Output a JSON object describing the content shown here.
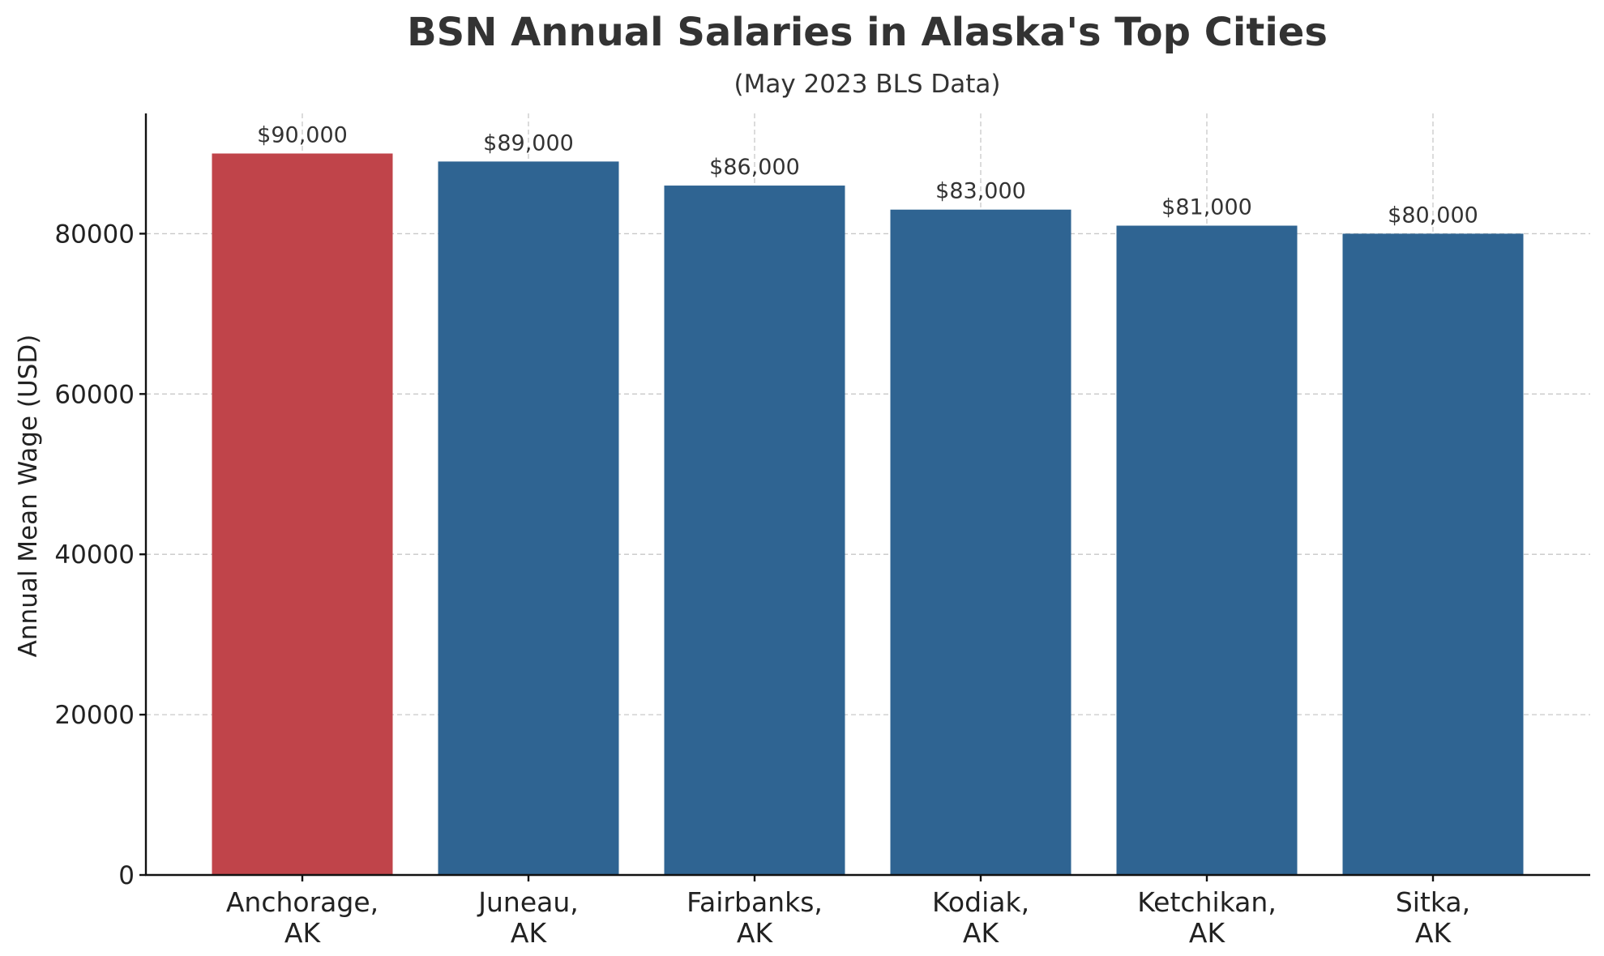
{
  "chart_data": {
    "type": "bar",
    "title": "BSN Annual Salaries in Alaska's Top Cities",
    "subtitle": "(May 2023 BLS Data)",
    "xlabel": "",
    "ylabel": "Annual Mean Wage (USD)",
    "ylim": [
      0,
      95000
    ],
    "yticks": [
      0,
      20000,
      40000,
      60000,
      80000
    ],
    "ytick_labels": [
      "0",
      "20000",
      "40000",
      "60000",
      "80000"
    ],
    "categories": [
      [
        "Anchorage,",
        "AK"
      ],
      [
        "Juneau,",
        "AK"
      ],
      [
        "Fairbanks,",
        "AK"
      ],
      [
        "Kodiak,",
        "AK"
      ],
      [
        "Ketchikan,",
        "AK"
      ],
      [
        "Sitka,",
        "AK"
      ]
    ],
    "values": [
      90000,
      89000,
      86000,
      83000,
      81000,
      80000
    ],
    "data_labels": [
      "$90,000",
      "$89,000",
      "$86,000",
      "$83,000",
      "$81,000",
      "$80,000"
    ],
    "colors": [
      "#c0444a",
      "#2f6492",
      "#2f6492",
      "#2f6492",
      "#2f6492",
      "#2f6492"
    ],
    "grid": true,
    "legend": "none"
  }
}
